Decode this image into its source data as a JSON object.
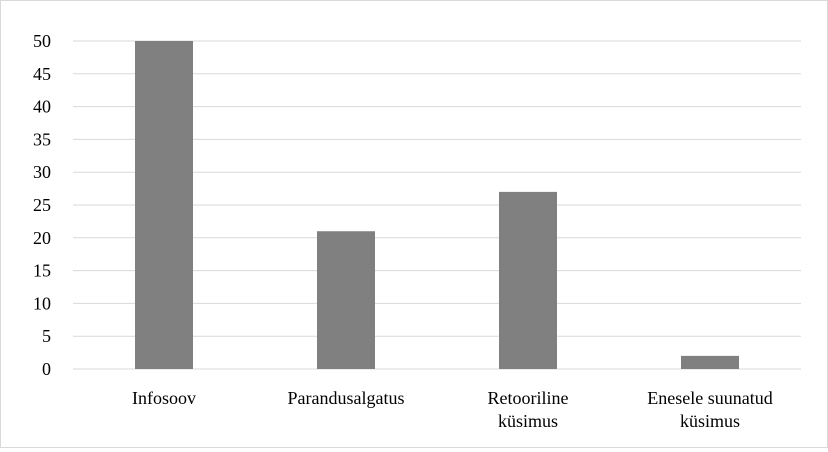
{
  "chart_data": {
    "type": "bar",
    "categories": [
      [
        "Infosoov"
      ],
      [
        "Parandusalgatus"
      ],
      [
        "Retooriline",
        "küsimus"
      ],
      [
        "Enesele suunatud",
        "küsimus"
      ]
    ],
    "values": [
      50,
      21,
      27,
      2
    ],
    "title": "",
    "xlabel": "",
    "ylabel": "",
    "ylim": [
      0,
      50
    ],
    "yticks": [
      0,
      5,
      10,
      15,
      20,
      25,
      30,
      35,
      40,
      45,
      50
    ],
    "grid": true,
    "legend": "none",
    "colors": {
      "bar": "#808080",
      "grid": "#d9d9d9",
      "axis": "#d9d9d9",
      "text": "#000000"
    }
  }
}
